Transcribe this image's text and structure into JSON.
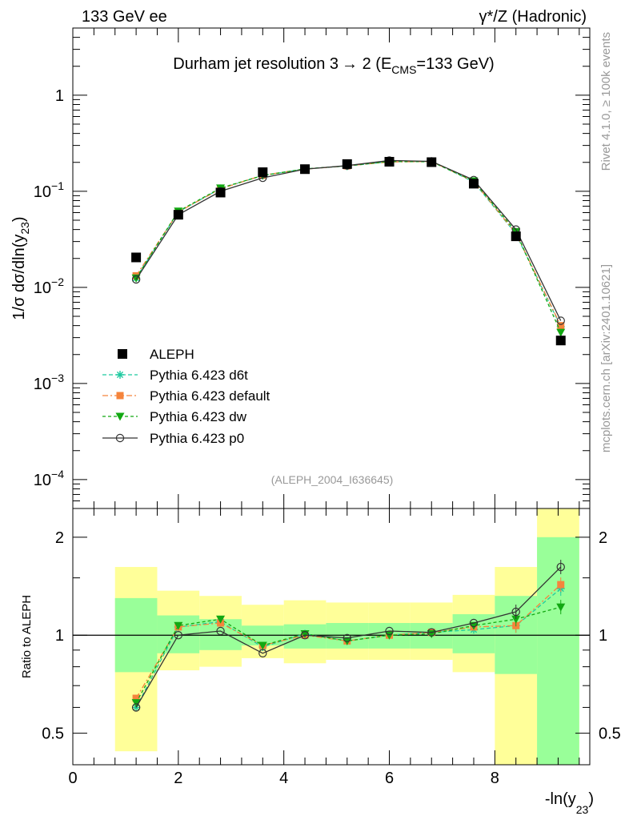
{
  "header": {
    "left": "133 GeV ee",
    "right": "γ*/Z (Hadronic)"
  },
  "side_labels": {
    "rivet": "Rivet 4.1.0, ≥ 100k events",
    "mcplots": "mcplots.cern.ch [arXiv:2401.10621]"
  },
  "colors": {
    "aleph": "#000000",
    "d6t": "#1fc9a0",
    "default": "#f5843c",
    "dw": "#12a812",
    "p0": "#333333",
    "band_inner": "#99ff99",
    "band_outer": "#ffff99",
    "ref_label": "#999999"
  },
  "chart_data": [
    {
      "type": "line",
      "name": "main",
      "title": "Durham jet resolution 3→ 2 (E_CMS=133 GeV)",
      "title_parts": {
        "main": "Durham jet resolution 3",
        "arrow": "→",
        "after": " 2 (E",
        "sub": "CMS",
        "end": "=133 GeV)"
      },
      "ylabel_parts": {
        "pre": "1/σ  dσ/dln(y",
        "sub": "23",
        "post": ")"
      },
      "yscale": "log",
      "ylim": [
        5e-05,
        5
      ],
      "xlim": [
        0,
        9.8
      ],
      "yticks": [
        {
          "v": 0.0001,
          "base": "10",
          "exp": "−4"
        },
        {
          "v": 0.001,
          "base": "10",
          "exp": "−3"
        },
        {
          "v": 0.01,
          "base": "10",
          "exp": "−2"
        },
        {
          "v": 0.1,
          "base": "10",
          "exp": "−1"
        },
        {
          "v": 1,
          "base": "1",
          "exp": ""
        }
      ],
      "x": [
        1.2,
        2.0,
        2.8,
        3.6,
        4.4,
        5.2,
        6.0,
        6.8,
        7.6,
        8.4,
        9.25
      ],
      "aleph": [
        0.0205,
        0.057,
        0.097,
        0.158,
        0.17,
        0.192,
        0.203,
        0.201,
        0.12,
        0.034,
        0.0028
      ],
      "series": [
        {
          "key": "d6t",
          "name": "Pythia 6.423 d6t",
          "marker": "star",
          "dash": "5,3",
          "values": [
            0.0125,
            0.061,
            0.107,
            0.146,
            0.171,
            0.183,
            0.203,
            0.205,
            0.125,
            0.036,
            0.0039
          ]
        },
        {
          "key": "default",
          "name": "Pythia 6.423 default",
          "marker": "square",
          "dash": "7,3,2,3",
          "values": [
            0.0132,
            0.061,
            0.106,
            0.147,
            0.17,
            0.184,
            0.202,
            0.204,
            0.127,
            0.0365,
            0.004
          ]
        },
        {
          "key": "dw",
          "name": "Pythia 6.423 dw",
          "marker": "triangle",
          "dash": "4,3",
          "values": [
            0.0125,
            0.062,
            0.108,
            0.146,
            0.171,
            0.184,
            0.204,
            0.203,
            0.128,
            0.038,
            0.0034
          ]
        },
        {
          "key": "p0",
          "name": "Pythia 6.423 p0",
          "marker": "circle",
          "dash": "",
          "values": [
            0.0121,
            0.057,
            0.1,
            0.138,
            0.17,
            0.185,
            0.209,
            0.205,
            0.131,
            0.04,
            0.0045
          ]
        }
      ],
      "legend": {
        "ref": "ALEPH",
        "placement": "lower-left"
      },
      "ref_label": "(ALEPH_2004_I636645)"
    },
    {
      "type": "line",
      "name": "ratio",
      "ylabel": "Ratio to ALEPH",
      "xlabel_parts": {
        "pre": "-ln(y",
        "sub": "23",
        "post": ")"
      },
      "yscale": "log",
      "ylim": [
        0.4,
        2.45
      ],
      "xlim": [
        0,
        9.8
      ],
      "yticks": [
        0.5,
        1,
        2
      ],
      "xticks": [
        0,
        2,
        4,
        6,
        8
      ],
      "x": [
        1.2,
        2.0,
        2.8,
        3.6,
        4.4,
        5.2,
        6.0,
        6.8,
        7.6,
        8.4,
        9.25
      ],
      "bins": [
        {
          "lo": 0.8,
          "hi": 1.6,
          "inner": [
            0.77,
            1.3
          ],
          "outer": [
            0.44,
            1.62
          ]
        },
        {
          "lo": 1.6,
          "hi": 2.4,
          "inner": [
            0.88,
            1.15
          ],
          "outer": [
            0.78,
            1.37
          ]
        },
        {
          "lo": 2.4,
          "hi": 3.2,
          "inner": [
            0.9,
            1.12
          ],
          "outer": [
            0.8,
            1.32
          ]
        },
        {
          "lo": 3.2,
          "hi": 4.0,
          "inner": [
            0.93,
            1.07
          ],
          "outer": [
            0.85,
            1.24
          ]
        },
        {
          "lo": 4.0,
          "hi": 4.8,
          "inner": [
            0.91,
            1.08
          ],
          "outer": [
            0.82,
            1.28
          ]
        },
        {
          "lo": 4.8,
          "hi": 5.6,
          "inner": [
            0.91,
            1.09
          ],
          "outer": [
            0.84,
            1.26
          ]
        },
        {
          "lo": 5.6,
          "hi": 6.4,
          "inner": [
            0.91,
            1.09
          ],
          "outer": [
            0.84,
            1.26
          ]
        },
        {
          "lo": 6.4,
          "hi": 7.2,
          "inner": [
            0.91,
            1.09
          ],
          "outer": [
            0.84,
            1.26
          ]
        },
        {
          "lo": 7.2,
          "hi": 8.0,
          "inner": [
            0.88,
            1.16
          ],
          "outer": [
            0.77,
            1.33
          ]
        },
        {
          "lo": 8.0,
          "hi": 8.8,
          "inner": [
            0.76,
            1.32
          ],
          "outer": [
            0.4,
            1.62
          ]
        },
        {
          "lo": 8.8,
          "hi": 9.6,
          "inner": [
            0.4,
            2.0
          ],
          "outer": [
            0.4,
            2.45
          ]
        }
      ],
      "series": [
        {
          "key": "d6t",
          "marker": "star",
          "dash": "5,3",
          "values": [
            0.6,
            1.06,
            1.1,
            0.92,
            1.01,
            0.96,
            1.0,
            1.02,
            1.04,
            1.07,
            1.39
          ]
        },
        {
          "key": "default",
          "marker": "square",
          "dash": "7,3,2,3",
          "values": [
            0.64,
            1.06,
            1.09,
            0.93,
            1.0,
            0.96,
            1.0,
            1.02,
            1.06,
            1.07,
            1.43
          ]
        },
        {
          "key": "dw",
          "marker": "triangle",
          "dash": "4,3",
          "values": [
            0.62,
            1.07,
            1.12,
            0.93,
            1.01,
            0.96,
            1.0,
            1.01,
            1.07,
            1.12,
            1.22
          ]
        },
        {
          "key": "p0",
          "marker": "circle",
          "dash": "",
          "values": [
            0.6,
            1.0,
            1.03,
            0.88,
            1.0,
            0.98,
            1.03,
            1.02,
            1.09,
            1.18,
            1.62
          ]
        }
      ]
    }
  ]
}
